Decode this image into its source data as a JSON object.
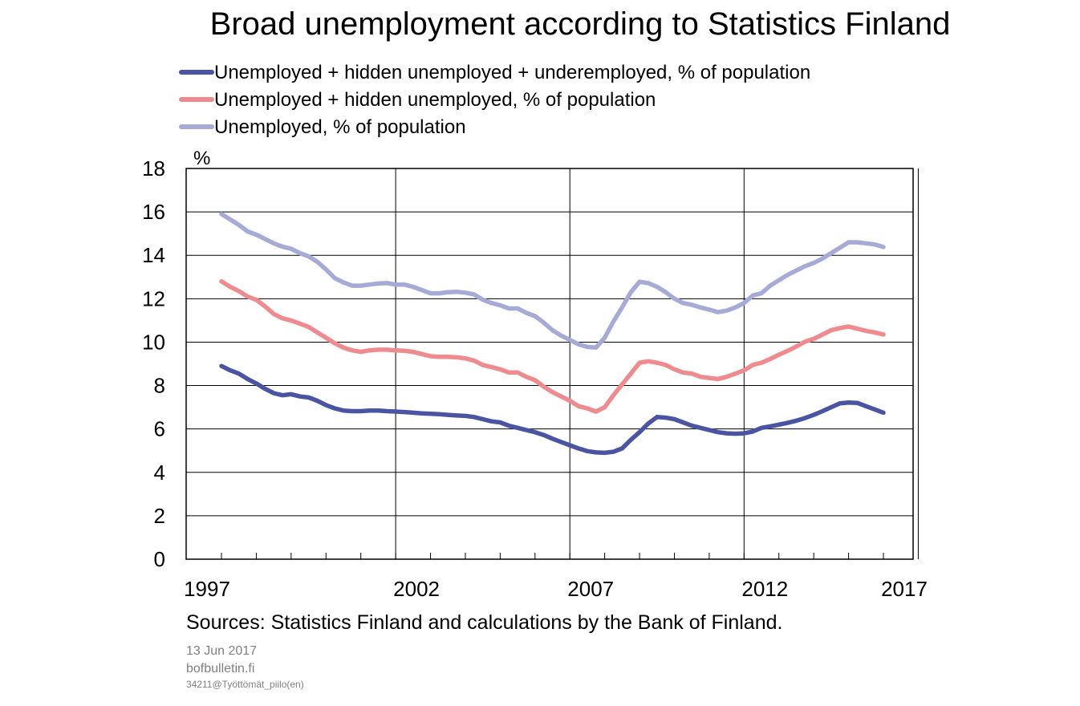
{
  "chart_data": {
    "type": "line",
    "title": "Broad unemployment according to Statistics Finland",
    "ylabel": "%",
    "xlabel": "",
    "ylim": [
      0,
      18
    ],
    "xlim": [
      1997.0,
      2017.0
    ],
    "y_ticks": [
      "0",
      "2",
      "4",
      "6",
      "8",
      "10",
      "12",
      "14",
      "16",
      "18"
    ],
    "x_ticks": [
      "1997",
      "2002",
      "2007",
      "2012",
      "2017"
    ],
    "grid": true,
    "legend_position": "top-left",
    "series": [
      {
        "name": "Unemployed + hidden unemployed + underemployed, % of population",
        "color": "#4a54a3",
        "x": [
          1998.0,
          1998.25,
          1998.5,
          1998.75,
          1999.0,
          1999.25,
          1999.5,
          1999.75,
          2000.0,
          2000.25,
          2000.5,
          2000.75,
          2001.0,
          2001.25,
          2001.5,
          2001.75,
          2002.0,
          2002.25,
          2002.5,
          2002.75,
          2003.0,
          2003.25,
          2003.5,
          2003.75,
          2004.0,
          2004.25,
          2004.5,
          2004.75,
          2005.0,
          2005.25,
          2005.5,
          2005.75,
          2006.0,
          2006.25,
          2006.5,
          2006.75,
          2007.0,
          2007.25,
          2007.5,
          2007.75,
          2008.0,
          2008.25,
          2008.5,
          2008.75,
          2009.0,
          2009.25,
          2009.5,
          2009.75,
          2010.0,
          2010.25,
          2010.5,
          2010.75,
          2011.0,
          2011.25,
          2011.5,
          2011.75,
          2012.0,
          2012.25,
          2012.5,
          2012.75,
          2013.0,
          2013.25,
          2013.5,
          2013.75,
          2014.0,
          2014.25,
          2014.5,
          2014.75,
          2015.0,
          2015.25,
          2015.5,
          2015.75,
          2016.0,
          2016.25,
          2016.5,
          2016.75,
          2017.0
        ],
        "values": [
          8.9,
          8.7,
          8.55,
          8.3,
          8.1,
          7.85,
          7.65,
          7.55,
          7.6,
          7.5,
          7.45,
          7.3,
          7.1,
          6.95,
          6.85,
          6.82,
          6.82,
          6.85,
          6.85,
          6.82,
          6.8,
          6.78,
          6.75,
          6.72,
          6.7,
          6.68,
          6.65,
          6.62,
          6.6,
          6.55,
          6.45,
          6.35,
          6.3,
          6.15,
          6.05,
          5.95,
          5.85,
          5.72,
          5.55,
          5.4,
          5.25,
          5.1,
          4.98,
          4.92,
          4.9,
          4.95,
          5.1,
          5.5,
          5.85,
          6.25,
          6.55,
          6.52,
          6.45,
          6.3,
          6.15,
          6.05,
          5.95,
          5.85,
          5.8,
          5.78,
          5.8,
          5.88,
          6.05,
          6.12,
          6.2,
          6.28,
          6.38,
          6.5,
          6.65,
          6.82,
          7.0,
          7.18,
          7.22,
          7.2,
          7.05,
          6.9,
          6.75
        ]
      },
      {
        "name": "Unemployed + hidden unemployed, % of population",
        "color": "#ef8b8e",
        "x": [
          1998.0,
          1998.25,
          1998.5,
          1998.75,
          1999.0,
          1999.25,
          1999.5,
          1999.75,
          2000.0,
          2000.25,
          2000.5,
          2000.75,
          2001.0,
          2001.25,
          2001.5,
          2001.75,
          2002.0,
          2002.25,
          2002.5,
          2002.75,
          2003.0,
          2003.25,
          2003.5,
          2003.75,
          2004.0,
          2004.25,
          2004.5,
          2004.75,
          2005.0,
          2005.25,
          2005.5,
          2005.75,
          2006.0,
          2006.25,
          2006.5,
          2006.75,
          2007.0,
          2007.25,
          2007.5,
          2007.75,
          2008.0,
          2008.25,
          2008.5,
          2008.75,
          2009.0,
          2009.25,
          2009.5,
          2009.75,
          2010.0,
          2010.25,
          2010.5,
          2010.75,
          2011.0,
          2011.25,
          2011.5,
          2011.75,
          2012.0,
          2012.25,
          2012.5,
          2012.75,
          2013.0,
          2013.25,
          2013.5,
          2013.75,
          2014.0,
          2014.25,
          2014.5,
          2014.75,
          2015.0,
          2015.25,
          2015.5,
          2015.75,
          2016.0,
          2016.25,
          2016.5,
          2016.75,
          2017.0
        ],
        "values": [
          12.8,
          12.55,
          12.35,
          12.1,
          11.95,
          11.65,
          11.3,
          11.1,
          11.0,
          10.85,
          10.7,
          10.45,
          10.2,
          9.95,
          9.75,
          9.62,
          9.55,
          9.62,
          9.65,
          9.65,
          9.62,
          9.6,
          9.55,
          9.45,
          9.35,
          9.32,
          9.32,
          9.3,
          9.25,
          9.15,
          8.95,
          8.85,
          8.75,
          8.6,
          8.6,
          8.4,
          8.25,
          7.95,
          7.7,
          7.5,
          7.3,
          7.05,
          6.95,
          6.8,
          7.0,
          7.55,
          8.05,
          8.55,
          9.05,
          9.12,
          9.05,
          8.95,
          8.75,
          8.6,
          8.55,
          8.4,
          8.35,
          8.3,
          8.4,
          8.55,
          8.7,
          8.95,
          9.05,
          9.22,
          9.42,
          9.6,
          9.8,
          10.02,
          10.15,
          10.35,
          10.55,
          10.65,
          10.72,
          10.62,
          10.52,
          10.45,
          10.35
        ]
      },
      {
        "name": "Unemployed, % of population",
        "color": "#a5abd6",
        "x": [
          1998.0,
          1998.25,
          1998.5,
          1998.75,
          1999.0,
          1999.25,
          1999.5,
          1999.75,
          2000.0,
          2000.25,
          2000.5,
          2000.75,
          2001.0,
          2001.25,
          2001.5,
          2001.75,
          2002.0,
          2002.25,
          2002.5,
          2002.75,
          2003.0,
          2003.25,
          2003.5,
          2003.75,
          2004.0,
          2004.25,
          2004.5,
          2004.75,
          2005.0,
          2005.25,
          2005.5,
          2005.75,
          2006.0,
          2006.25,
          2006.5,
          2006.75,
          2007.0,
          2007.25,
          2007.5,
          2007.75,
          2008.0,
          2008.25,
          2008.5,
          2008.75,
          2009.0,
          2009.25,
          2009.5,
          2009.75,
          2010.0,
          2010.25,
          2010.5,
          2010.75,
          2011.0,
          2011.25,
          2011.5,
          2011.75,
          2012.0,
          2012.25,
          2012.5,
          2012.75,
          2013.0,
          2013.25,
          2013.5,
          2013.75,
          2014.0,
          2014.25,
          2014.5,
          2014.75,
          2015.0,
          2015.25,
          2015.5,
          2015.75,
          2016.0,
          2016.25,
          2016.5,
          2016.75,
          2017.0
        ],
        "values": [
          15.9,
          15.65,
          15.4,
          15.1,
          14.95,
          14.75,
          14.55,
          14.4,
          14.3,
          14.1,
          13.95,
          13.7,
          13.35,
          12.95,
          12.75,
          12.6,
          12.6,
          12.65,
          12.7,
          12.72,
          12.65,
          12.65,
          12.55,
          12.4,
          12.25,
          12.25,
          12.3,
          12.32,
          12.28,
          12.2,
          11.95,
          11.8,
          11.7,
          11.55,
          11.55,
          11.35,
          11.2,
          10.9,
          10.55,
          10.3,
          10.1,
          9.9,
          9.78,
          9.75,
          10.2,
          10.95,
          11.6,
          12.3,
          12.78,
          12.72,
          12.55,
          12.3,
          12.0,
          11.8,
          11.72,
          11.6,
          11.5,
          11.38,
          11.45,
          11.6,
          11.8,
          12.15,
          12.25,
          12.6,
          12.85,
          13.1,
          13.3,
          13.5,
          13.65,
          13.85,
          14.1,
          14.35,
          14.6,
          14.6,
          14.55,
          14.5,
          14.38
        ]
      }
    ]
  },
  "source_note": "Sources: Statistics Finland and calculations by the Bank of Finland.",
  "meta": {
    "date": "13 Jun 2017",
    "site": "bofbulletin.fi",
    "file_id": "34211@Työttömät_piilo(en)"
  }
}
